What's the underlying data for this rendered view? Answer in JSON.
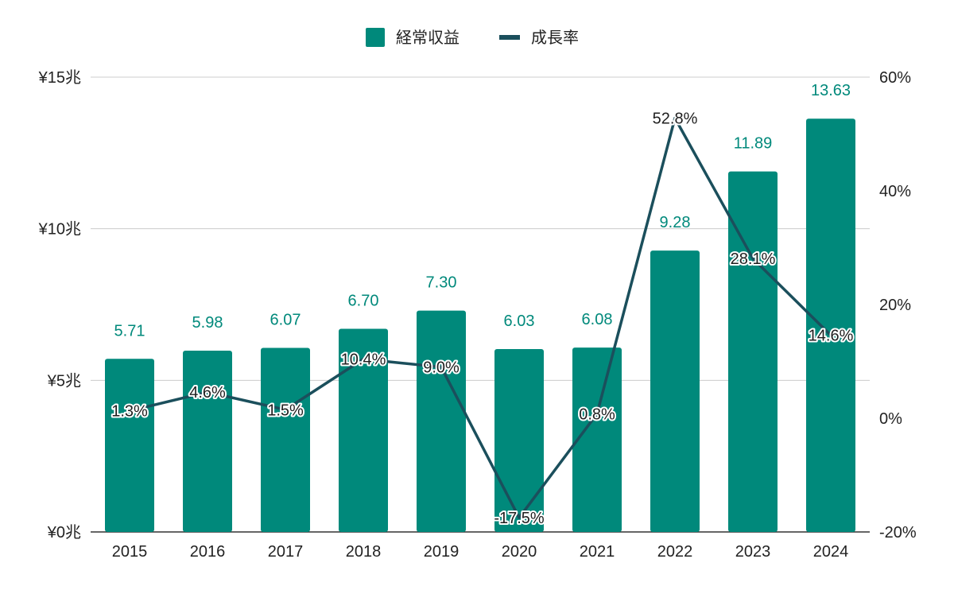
{
  "chart_data": {
    "type": "bar",
    "categories": [
      "2015",
      "2016",
      "2017",
      "2018",
      "2019",
      "2020",
      "2021",
      "2022",
      "2023",
      "2024"
    ],
    "series": [
      {
        "name": "経常収益",
        "kind": "bar",
        "axis": "left",
        "color": "#00897b",
        "values": [
          5.71,
          5.98,
          6.07,
          6.7,
          7.3,
          6.03,
          6.08,
          9.28,
          11.89,
          13.63
        ],
        "labels": [
          "5.71",
          "5.98",
          "6.07",
          "6.70",
          "7.30",
          "6.03",
          "6.08",
          "9.28",
          "11.89",
          "13.63"
        ]
      },
      {
        "name": "成長率",
        "kind": "line",
        "axis": "right",
        "color": "#1b4f5c",
        "values": [
          1.3,
          4.6,
          1.5,
          10.4,
          9.0,
          -17.5,
          0.8,
          52.8,
          28.1,
          14.6
        ],
        "labels": [
          "1.3%",
          "4.6%",
          "1.5%",
          "10.4%",
          "9.0%",
          "-17.5%",
          "0.8%",
          "52.8%",
          "28.1%",
          "14.6%"
        ]
      }
    ],
    "y_left": {
      "ylim": [
        0,
        15
      ],
      "ticks": [
        0,
        5,
        10,
        15
      ],
      "tick_labels": [
        "¥0兆",
        "¥5兆",
        "¥10兆",
        "¥15兆"
      ]
    },
    "y_right": {
      "ylim": [
        -20,
        60
      ],
      "ticks": [
        -20,
        0,
        20,
        40,
        60
      ],
      "tick_labels": [
        "-20%",
        "0%",
        "20%",
        "40%",
        "60%"
      ]
    },
    "grid": true,
    "legend_position": "top-center",
    "title": "",
    "xlabel": "",
    "ylabel": ""
  }
}
